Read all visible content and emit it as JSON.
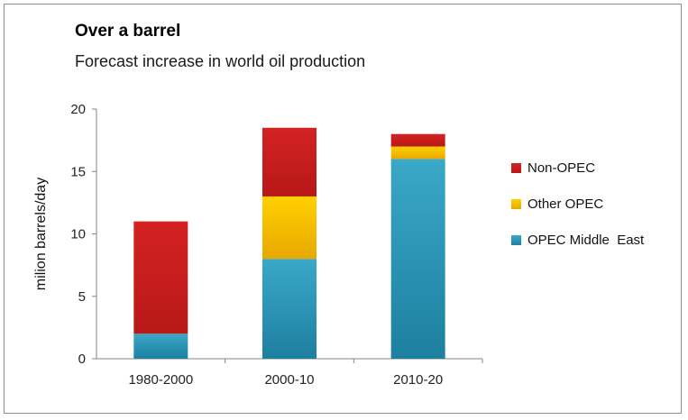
{
  "title": "Over a barrel",
  "subtitle": "Forecast increase in world oil production",
  "chart_data": {
    "type": "bar",
    "stacked": true,
    "title": "Over a barrel",
    "subtitle": "Forecast increase in world oil production",
    "xlabel": "",
    "ylabel": "milion barrels/day",
    "ylim": [
      0,
      20
    ],
    "yticks": [
      0,
      5,
      10,
      15,
      20
    ],
    "categories": [
      "1980-2000",
      "2000-10",
      "2010-20"
    ],
    "series": [
      {
        "name": "OPEC Middle  East",
        "values": [
          2,
          8,
          16
        ],
        "color_top": "#3aa8c8",
        "color_bottom": "#1e7fa0"
      },
      {
        "name": "Other OPEC",
        "values": [
          0,
          5,
          1
        ],
        "color_top": "#ffd000",
        "color_bottom": "#e8a800"
      },
      {
        "name": "Non-OPEC",
        "values": [
          9,
          5.5,
          1
        ],
        "color_top": "#d32222",
        "color_bottom": "#b81818"
      }
    ],
    "legend_order": [
      "Non-OPEC",
      "Other OPEC",
      "OPEC Middle  East"
    ],
    "legend_position": "right",
    "grid": false
  }
}
